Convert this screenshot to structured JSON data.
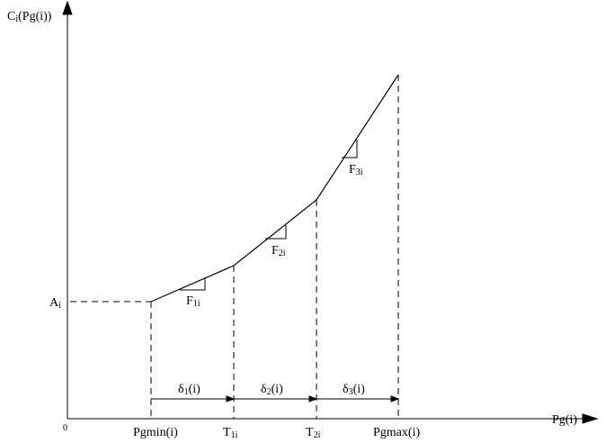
{
  "y_axis": {
    "label": {
      "main": "C",
      "sub": "i",
      "rest": "(Pg(i))"
    },
    "origin": "0"
  },
  "x_axis": {
    "label": "Pg(i)",
    "ticks": [
      "Pgmin(i)",
      {
        "main": "T",
        "sub": "1i"
      },
      {
        "main": "T",
        "sub": "2i"
      },
      "Pgmax(i)"
    ]
  },
  "intercept": {
    "main": "A",
    "sub": "i"
  },
  "slopes": [
    {
      "main": "F",
      "sub": "1i"
    },
    {
      "main": "F",
      "sub": "2i"
    },
    {
      "main": "F",
      "sub": "3i"
    }
  ],
  "segments": [
    {
      "main": "δ",
      "sub": "1",
      "rest": "(i)"
    },
    {
      "main": "δ",
      "sub": "2",
      "rest": "(i)"
    },
    {
      "main": "δ",
      "sub": "3",
      "rest": "(i)"
    }
  ]
}
